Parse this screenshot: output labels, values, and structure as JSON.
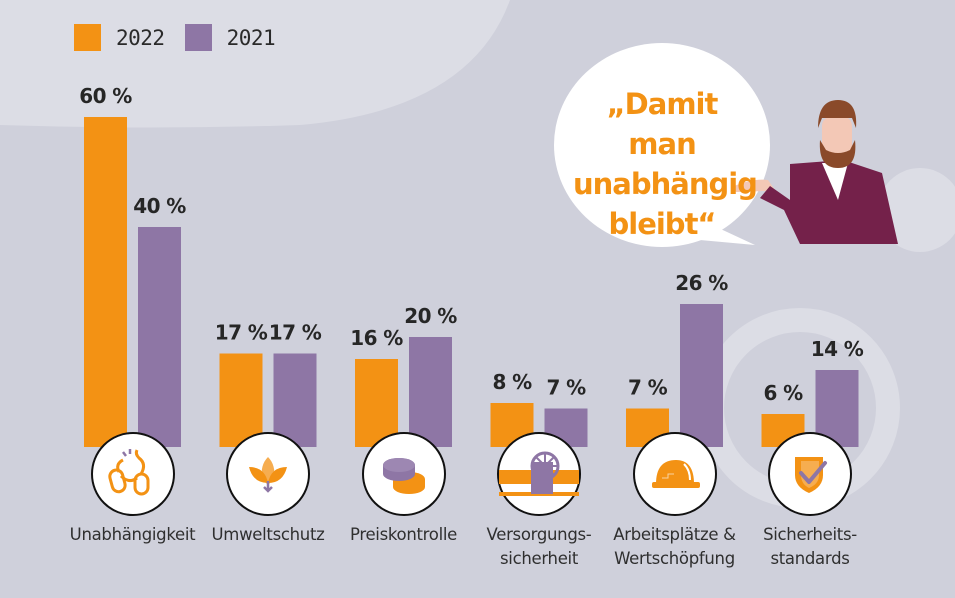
{
  "legend": [
    {
      "label": "2022",
      "color": "#f39214"
    },
    {
      "label": "2021",
      "color": "#8e76a5"
    }
  ],
  "speech_bubble": {
    "quote": "„Damit man unabhängig bleibt“"
  },
  "chart_data": {
    "type": "bar",
    "title": "",
    "xlabel": "",
    "ylabel": "",
    "ylim": [
      0,
      60
    ],
    "grid": false,
    "legend_position": "top-left",
    "categories": [
      "Unabhängigkeit",
      "Umweltschutz",
      "Preiskontrolle",
      "Versorgungs-\nsicherheit",
      "Arbeitsplätze &\nWertschöpfung",
      "Sicherheits-\nstandards"
    ],
    "category_icons": [
      "broken-chain-icon",
      "leaf-icon",
      "coins-icon",
      "pipeline-valve-icon",
      "hard-hat-icon",
      "shield-check-icon"
    ],
    "series": [
      {
        "name": "2022",
        "color": "#f39214",
        "values": [
          60,
          17,
          16,
          8,
          7,
          6
        ],
        "labels": [
          "60 %",
          "17 %",
          "16 %",
          "8 %",
          "7 %",
          "6 %"
        ]
      },
      {
        "name": "2021",
        "color": "#8e76a5",
        "values": [
          40,
          17,
          20,
          7,
          26,
          14
        ],
        "labels": [
          "40 %",
          "17 %",
          "20 %",
          "7 %",
          "26 %",
          "14 %"
        ]
      }
    ]
  }
}
